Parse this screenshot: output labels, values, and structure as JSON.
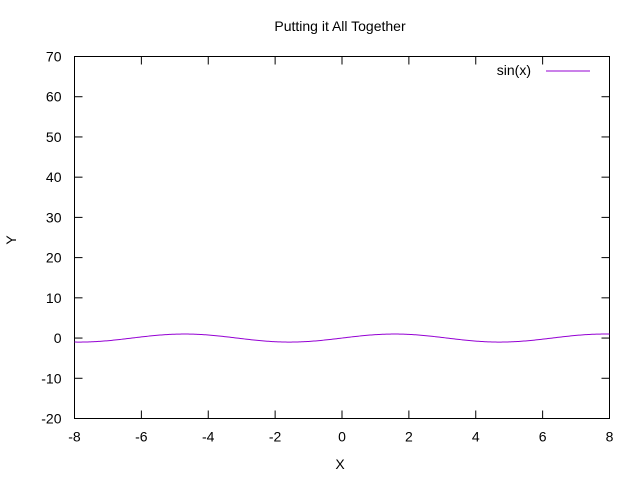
{
  "chart_data": {
    "type": "line",
    "title": "Putting it All Together",
    "xlabel": "X",
    "ylabel": "Y",
    "xlim": [
      -8,
      8
    ],
    "ylim": [
      -20,
      70
    ],
    "xticks": [
      "-8",
      "-6",
      "-4",
      "-2",
      "0",
      "2",
      "4",
      "6",
      "8"
    ],
    "yticks": [
      "-20",
      "-10",
      "0",
      "10",
      "20",
      "30",
      "40",
      "50",
      "60",
      "70"
    ],
    "grid": false,
    "legend_position": "top-right",
    "series": [
      {
        "name": "sin(x)",
        "function": "sin(x)",
        "color": "#9400d3",
        "x": [
          -8,
          -7,
          -6,
          -5,
          -4,
          -3,
          -2,
          -1,
          0,
          1,
          2,
          3,
          4,
          5,
          6,
          7,
          8
        ],
        "y": [
          -0.99,
          -0.66,
          0.28,
          0.96,
          0.76,
          -0.14,
          -0.91,
          -0.84,
          0,
          0.84,
          0.91,
          0.14,
          -0.76,
          -0.96,
          -0.28,
          0.66,
          0.99
        ]
      }
    ]
  }
}
